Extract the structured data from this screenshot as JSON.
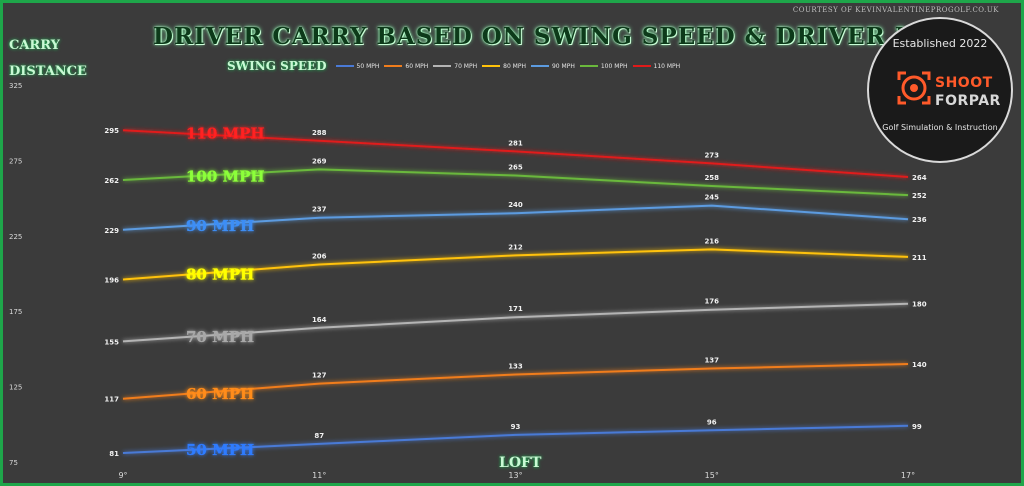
{
  "header": {
    "title": "DRIVER CARRY BASED ON SWING SPEED & DRIVER LOFT",
    "credit": "COURTESY OF KEVINVALENTINEPROGOLF.CO.UK",
    "ylabel_line1": "CARRY",
    "ylabel_line2": "DISTANCE",
    "xlabel": "LOFT",
    "legend_title": "SWING SPEED"
  },
  "logo": {
    "top_text": "Established 2022",
    "name_part1": "SHOOT",
    "name_part2": "FORPAR",
    "subtitle": "Golf Simulation & Instruction",
    "accent_color": "#ff5a2a",
    "icon": "crosshair-target-icon"
  },
  "chart_data": {
    "type": "line",
    "title": "DRIVER CARRY BASED ON SWING SPEED & DRIVER LOFT",
    "xlabel": "LOFT",
    "ylabel": "CARRY DISTANCE",
    "x": [
      9,
      11,
      13,
      15,
      17
    ],
    "x_tick_labels": [
      "9°",
      "11°",
      "13°",
      "15°",
      "17°"
    ],
    "ylim": [
      75,
      325
    ],
    "y_ticks": [
      75,
      125,
      175,
      225,
      275,
      325
    ],
    "grid": false,
    "legend_position": "top",
    "series": [
      {
        "name": "50 MPH",
        "label": "50 MPH",
        "color": "#4a7ad6",
        "values": [
          81,
          87,
          93,
          96,
          99
        ]
      },
      {
        "name": "60 MPH",
        "label": "60 MPH",
        "color": "#f07d1c",
        "values": [
          117,
          127,
          133,
          137,
          140
        ]
      },
      {
        "name": "70 MPH",
        "label": "70 MPH",
        "color": "#b4b4b4",
        "values": [
          155,
          164,
          171,
          176,
          180
        ]
      },
      {
        "name": "80 MPH",
        "label": "80 MPH",
        "color": "#ffc20a",
        "values": [
          196,
          206,
          212,
          216,
          211
        ]
      },
      {
        "name": "90 MPH",
        "label": "90 MPH",
        "color": "#5c9be0",
        "values": [
          229,
          237,
          240,
          245,
          236
        ]
      },
      {
        "name": "100 MPH",
        "label": "100 MPH",
        "color": "#6ab83c",
        "values": [
          262,
          269,
          265,
          258,
          252
        ]
      },
      {
        "name": "110 MPH",
        "label": "110 MPH",
        "color": "#e01a1a",
        "values": [
          295,
          288,
          281,
          273,
          264
        ]
      }
    ],
    "inline_label_colors": [
      "#2f7bff",
      "#ff8c1a",
      "#a8a8a8",
      "#ffff00",
      "#3d8ef5",
      "#8cff3a",
      "#ff2020"
    ]
  }
}
